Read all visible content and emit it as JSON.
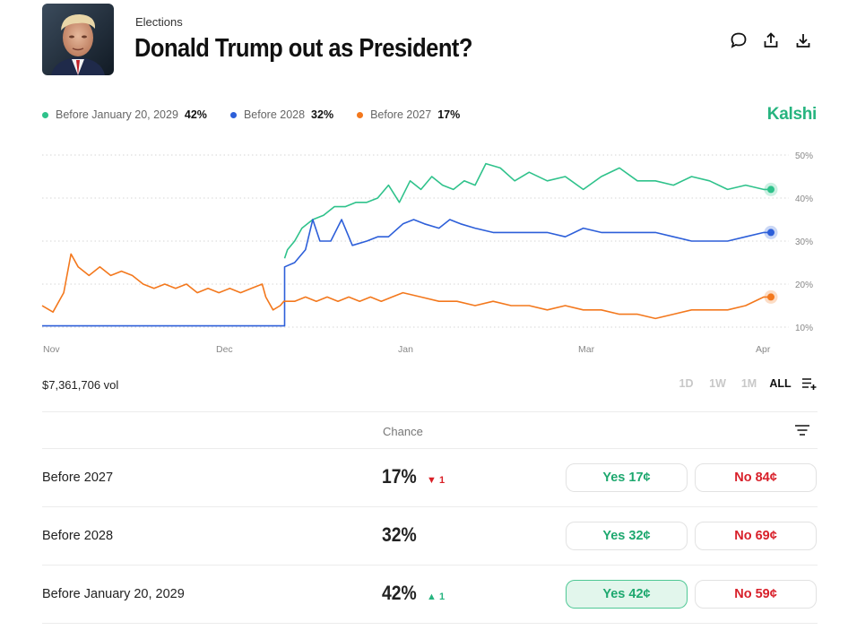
{
  "header": {
    "category": "Elections",
    "title": "Donald Trump out as President?",
    "icons": [
      "comment-icon",
      "share-icon",
      "download-icon"
    ]
  },
  "legend": [
    {
      "label": "Before January 20, 2029",
      "value": "42%",
      "color": "#2fc28b"
    },
    {
      "label": "Before 2028",
      "value": "32%",
      "color": "#2d5fd9"
    },
    {
      "label": "Before 2027",
      "value": "17%",
      "color": "#f3781d"
    }
  ],
  "brand": "Kalshi",
  "chart_data": {
    "type": "line",
    "x_labels": [
      "Nov",
      "Dec",
      "Jan",
      "Mar",
      "Apr"
    ],
    "y_ticks": [
      "50%",
      "40%",
      "30%",
      "20%",
      "10%"
    ],
    "ylim": [
      10,
      50
    ],
    "grid": true,
    "series": [
      {
        "name": "Before January 20, 2029",
        "color": "#2fc28b",
        "points": [
          [
            0.672,
            26
          ],
          [
            0.68,
            28
          ],
          [
            0.7,
            30
          ],
          [
            0.72,
            33
          ],
          [
            0.75,
            35
          ],
          [
            0.78,
            36
          ],
          [
            0.81,
            38
          ],
          [
            0.84,
            38
          ],
          [
            0.87,
            39
          ],
          [
            0.9,
            39
          ],
          [
            0.93,
            40
          ],
          [
            0.96,
            43
          ],
          [
            0.99,
            39
          ],
          [
            1.02,
            44
          ],
          [
            1.05,
            42
          ],
          [
            1.08,
            45
          ],
          [
            1.11,
            43
          ],
          [
            1.14,
            42
          ],
          [
            1.17,
            44
          ],
          [
            1.2,
            43
          ],
          [
            1.23,
            48
          ],
          [
            1.27,
            47
          ],
          [
            1.31,
            44
          ],
          [
            1.35,
            46
          ],
          [
            1.4,
            44
          ],
          [
            1.45,
            45
          ],
          [
            1.5,
            42
          ],
          [
            1.55,
            45
          ],
          [
            1.6,
            47
          ],
          [
            1.65,
            44
          ],
          [
            1.7,
            44
          ],
          [
            1.75,
            43
          ],
          [
            1.8,
            45
          ],
          [
            1.85,
            44
          ],
          [
            1.9,
            42
          ],
          [
            1.95,
            43
          ],
          [
            2.0,
            42
          ],
          [
            2.02,
            42
          ]
        ]
      },
      {
        "name": "Before 2028",
        "color": "#2d5fd9",
        "points": [
          [
            0,
            10.3
          ],
          [
            0.672,
            10.3
          ],
          [
            0.672,
            24
          ],
          [
            0.7,
            25
          ],
          [
            0.73,
            28
          ],
          [
            0.75,
            35
          ],
          [
            0.77,
            30
          ],
          [
            0.8,
            30
          ],
          [
            0.83,
            35
          ],
          [
            0.86,
            29
          ],
          [
            0.9,
            30
          ],
          [
            0.93,
            31
          ],
          [
            0.96,
            31
          ],
          [
            1.0,
            34
          ],
          [
            1.03,
            35
          ],
          [
            1.06,
            34
          ],
          [
            1.1,
            33
          ],
          [
            1.13,
            35
          ],
          [
            1.16,
            34
          ],
          [
            1.2,
            33
          ],
          [
            1.25,
            32
          ],
          [
            1.3,
            32
          ],
          [
            1.35,
            32
          ],
          [
            1.4,
            32
          ],
          [
            1.45,
            31
          ],
          [
            1.5,
            33
          ],
          [
            1.55,
            32
          ],
          [
            1.6,
            32
          ],
          [
            1.65,
            32
          ],
          [
            1.7,
            32
          ],
          [
            1.75,
            31
          ],
          [
            1.8,
            30
          ],
          [
            1.85,
            30
          ],
          [
            1.9,
            30
          ],
          [
            1.95,
            31
          ],
          [
            2.0,
            32
          ],
          [
            2.02,
            32
          ]
        ]
      },
      {
        "name": "Before 2027",
        "color": "#f3781d",
        "points": [
          [
            0,
            15
          ],
          [
            0.03,
            13.5
          ],
          [
            0.06,
            18
          ],
          [
            0.08,
            27
          ],
          [
            0.1,
            24
          ],
          [
            0.13,
            22
          ],
          [
            0.16,
            24
          ],
          [
            0.19,
            22
          ],
          [
            0.22,
            23
          ],
          [
            0.25,
            22
          ],
          [
            0.28,
            20
          ],
          [
            0.31,
            19
          ],
          [
            0.34,
            20
          ],
          [
            0.37,
            19
          ],
          [
            0.4,
            20
          ],
          [
            0.43,
            18
          ],
          [
            0.46,
            19
          ],
          [
            0.49,
            18
          ],
          [
            0.52,
            19
          ],
          [
            0.55,
            18
          ],
          [
            0.58,
            19
          ],
          [
            0.61,
            20
          ],
          [
            0.62,
            17
          ],
          [
            0.64,
            14
          ],
          [
            0.66,
            15
          ],
          [
            0.67,
            16
          ],
          [
            0.7,
            16
          ],
          [
            0.73,
            17
          ],
          [
            0.76,
            16
          ],
          [
            0.79,
            17
          ],
          [
            0.82,
            16
          ],
          [
            0.85,
            17
          ],
          [
            0.88,
            16
          ],
          [
            0.91,
            17
          ],
          [
            0.94,
            16
          ],
          [
            0.97,
            17
          ],
          [
            1.0,
            18
          ],
          [
            1.05,
            17
          ],
          [
            1.1,
            16
          ],
          [
            1.15,
            16
          ],
          [
            1.2,
            15
          ],
          [
            1.25,
            16
          ],
          [
            1.3,
            15
          ],
          [
            1.35,
            15
          ],
          [
            1.4,
            14
          ],
          [
            1.45,
            15
          ],
          [
            1.5,
            14
          ],
          [
            1.55,
            14
          ],
          [
            1.6,
            13
          ],
          [
            1.65,
            13
          ],
          [
            1.7,
            12
          ],
          [
            1.75,
            13
          ],
          [
            1.8,
            14
          ],
          [
            1.85,
            14
          ],
          [
            1.9,
            14
          ],
          [
            1.95,
            15
          ],
          [
            2.0,
            17
          ],
          [
            2.02,
            17
          ]
        ]
      }
    ]
  },
  "volume": "$7,361,706 vol",
  "ranges": [
    {
      "label": "1D",
      "active": false
    },
    {
      "label": "1W",
      "active": false
    },
    {
      "label": "1M",
      "active": false
    },
    {
      "label": "ALL",
      "active": true
    }
  ],
  "table": {
    "chance_header": "Chance",
    "rows": [
      {
        "label": "Before 2027",
        "chance": "17%",
        "delta": "▼ 1",
        "delta_dir": "down",
        "yes": "Yes 17¢",
        "no": "No 84¢",
        "yes_selected": false
      },
      {
        "label": "Before 2028",
        "chance": "32%",
        "delta": "",
        "delta_dir": "",
        "yes": "Yes 32¢",
        "no": "No 69¢",
        "yes_selected": false
      },
      {
        "label": "Before January 20, 2029",
        "chance": "42%",
        "delta": "▲ 1",
        "delta_dir": "up",
        "yes": "Yes 42¢",
        "no": "No 59¢",
        "yes_selected": true
      }
    ]
  }
}
